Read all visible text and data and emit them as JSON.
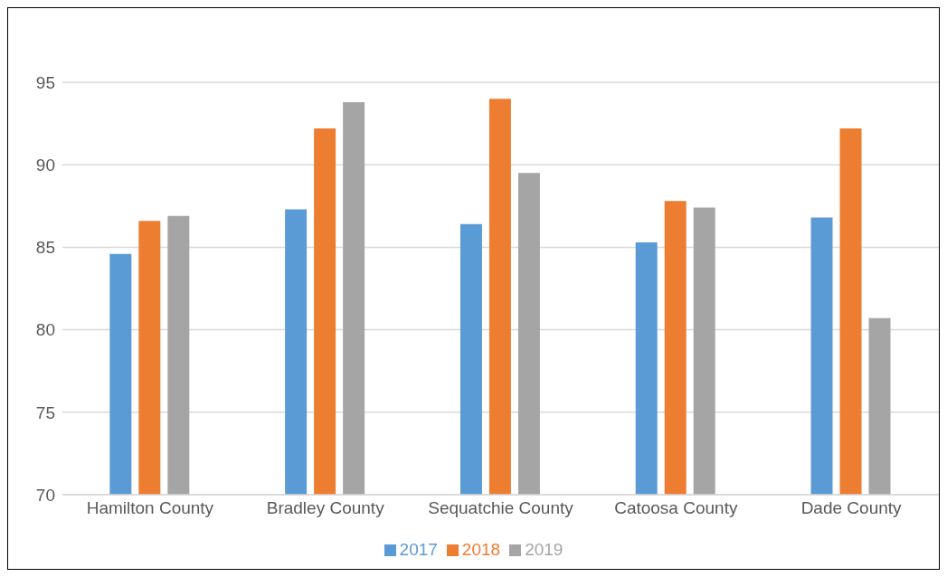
{
  "chart_data": {
    "type": "bar",
    "categories": [
      "Hamilton County",
      "Bradley County",
      "Sequatchie County",
      "Catoosa County",
      "Dade County"
    ],
    "series": [
      {
        "name": "2017",
        "color": "#5b9bd5",
        "values": [
          84.6,
          87.3,
          86.4,
          85.3,
          86.8
        ]
      },
      {
        "name": "2018",
        "color": "#ed7d31",
        "values": [
          86.6,
          92.2,
          94.0,
          87.8,
          92.2
        ]
      },
      {
        "name": "2019",
        "color": "#a5a5a5",
        "values": [
          86.9,
          93.8,
          89.5,
          87.4,
          80.7
        ]
      }
    ],
    "ylim": [
      70,
      95
    ],
    "yticks": [
      70,
      75,
      80,
      85,
      90,
      95
    ],
    "grid": "y",
    "legend": "bottom"
  }
}
